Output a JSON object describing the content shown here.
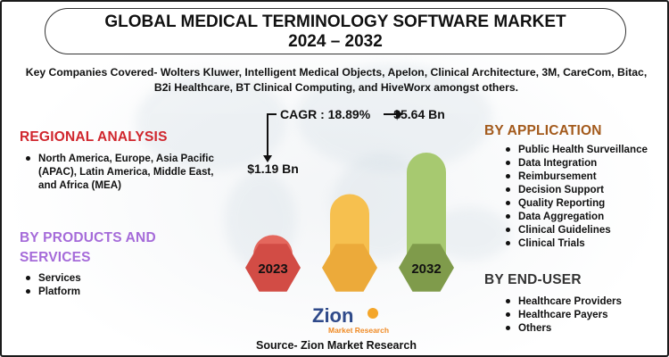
{
  "title": {
    "line1": "GLOBAL MEDICAL TERMINOLOGY SOFTWARE MARKET",
    "line2": "2024 – 2032"
  },
  "key_companies": "Key Companies Covered- Wolters Kluwer, Intelligent Medical Objects, Apelon, Clinical Architecture, 3M, CareCom, Bitac, B2i Healthcare, BT Clinical Computing, and HiveWorx amongst others.",
  "regional": {
    "heading": "REGIONAL ANALYSIS",
    "items": [
      "North America, Europe, Asia Pacific (APAC), Latin America, Middle East, and Africa (MEA)"
    ]
  },
  "products": {
    "heading": "BY PRODUCTS AND SERVICES",
    "items": [
      "Services",
      "Platform"
    ]
  },
  "application": {
    "heading": "BY APPLICATION",
    "items": [
      "Public Health Surveillance",
      "Data Integration",
      "Reimbursement",
      "Decision Support",
      "Quality Reporting",
      "Data Aggregation",
      "Clinical Guidelines",
      "Clinical Trials"
    ]
  },
  "end_user": {
    "heading": "BY END-USER",
    "items": [
      "Healthcare Providers",
      "Healthcare Payers",
      "Others"
    ]
  },
  "chart_data": {
    "type": "bar",
    "categories": [
      "2023",
      "",
      "2032"
    ],
    "values": [
      1.19,
      3.4,
      5.64
    ],
    "value_labels": [
      "$1.19 Bn",
      "",
      "$5.64 Bn"
    ],
    "cagr_label": "CAGR : 18.89%",
    "colors": [
      "#e4675d",
      "#f6c04f",
      "#a7c970"
    ],
    "hex_colors": [
      "#d24c45",
      "#ecaa3a",
      "#7f9b4b"
    ]
  },
  "logo": {
    "word1": "Zion",
    "word2": "Market Research"
  },
  "source": "Source- Zion Market Research"
}
